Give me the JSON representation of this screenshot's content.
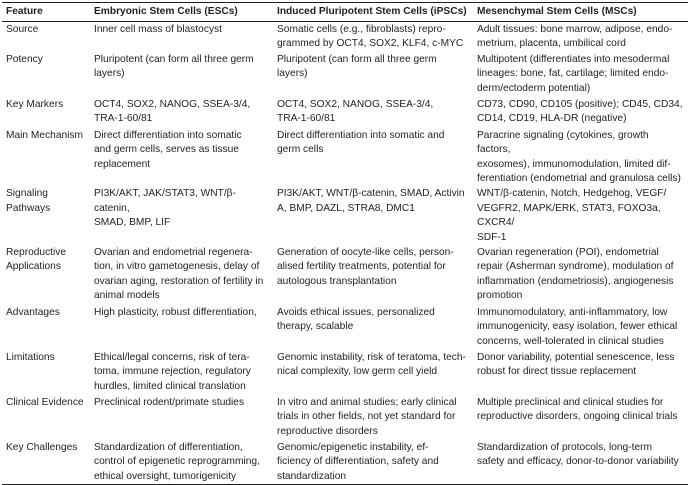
{
  "headers": [
    "Feature",
    "Embryonic Stem Cells (ESCs)",
    "Induced Pluripotent Stem Cells (iPSCs)",
    "Mesenchymal Stem Cells (MSCs)"
  ],
  "rows": [
    [
      "Source",
      "Inner cell mass of blastocyst",
      "Somatic cells (e.g., fibroblasts) repro-\ngrammed by OCT4, SOX2, KLF4, c-MYC",
      "Adult tissues: bone marrow, adipose, endo-\nmetrium, placenta, umbilical cord"
    ],
    [
      "Potency",
      "Pluripotent (can form all three germ\nlayers)",
      "Pluripotent (can form all three germ\nlayers)",
      "Multipotent (differentiates into mesodermal\nlineages: bone, fat, cartilage; limited endo-\nderm/ectoderm potential)"
    ],
    [
      "Key Markers",
      "OCT4, SOX2, NANOG, SSEA-3/4,\nTRA-1-60/81",
      "OCT4, SOX2, NANOG, SSEA-3/4,\nTRA-1-60/81",
      "CD73, CD90, CD105 (positive); CD45, CD34,\nCD14, CD19, HLA-DR (negative)"
    ],
    [
      "Main Mechanism",
      "Direct differentiation into somatic\nand germ cells, serves as tissue\nreplacement",
      "Direct differentiation into somatic and\ngerm cells",
      "Paracrine signaling (cytokines, growth factors,\nexosomes), immunomodulation, limited dif-\nferentiation (endometrial and granulosa cells)"
    ],
    [
      "Signaling\nPathways",
      "PI3K/AKT, JAK/STAT3, WNT/β-catenin,\nSMAD, BMP, LIF",
      "PI3K/AKT, WNT/β-catenin, SMAD, Activin\nA, BMP, DAZL, STRA8, DMC1",
      "WNT/β-catenin, Notch, Hedgehog, VEGF/\nVEGFR2, MAPK/ERK, STAT3, FOXO3a, CXCR4/\nSDF-1"
    ],
    [
      "Reproductive\nApplications",
      "Ovarian and endometrial regenera-\ntion, in vitro gametogenesis, delay of\novarian aging, restoration of fertility in\nanimal models",
      "Generation of oocyte-like cells, person-\nalised fertility treatments, potential for\nautologous transplantation",
      "Ovarian regeneration (POI), endometrial\nrepair (Asherman syndrome), modulation of\ninflammation (endometriosis), angiogenesis\npromotion"
    ],
    [
      "Advantages",
      "High plasticity, robust differentiation,",
      "Avoids ethical issues, personalized\ntherapy, scalable",
      "Immunomodulatory, anti-inflammatory, low\nimmunogenicity, easy isolation, fewer ethical\nconcerns, well-tolerated in clinical studies"
    ],
    [
      "Limitations",
      "Ethical/legal concerns, risk of tera-\ntoma, immune rejection, regulatory\nhurdles, limited clinical translation",
      "Genomic instability, risk of teratoma, tech-\nnical complexity, low germ cell yield",
      "Donor variability, potential senescence, less\nrobust for direct tissue replacement"
    ],
    [
      "Clinical Evidence",
      "Preclinical rodent/primate studies",
      "In vitro and animal studies; early clinical\ntrials in other fields, not yet standard for\nreproductive disorders",
      "Multiple preclinical and clinical studies for\nreproductive disorders, ongoing clinical trials"
    ],
    [
      "Key Challenges",
      "Standardization of differentiation,\ncontrol of epigenetic reprogramming,\nethical oversight, tumorigenicity",
      "Genomic/epigenetic instability, ef-\nficiency of differentiation, safety and\nstandardization",
      "Standardization of protocols, long-term\nsafety and efficacy, donor-to-donor variability"
    ]
  ]
}
